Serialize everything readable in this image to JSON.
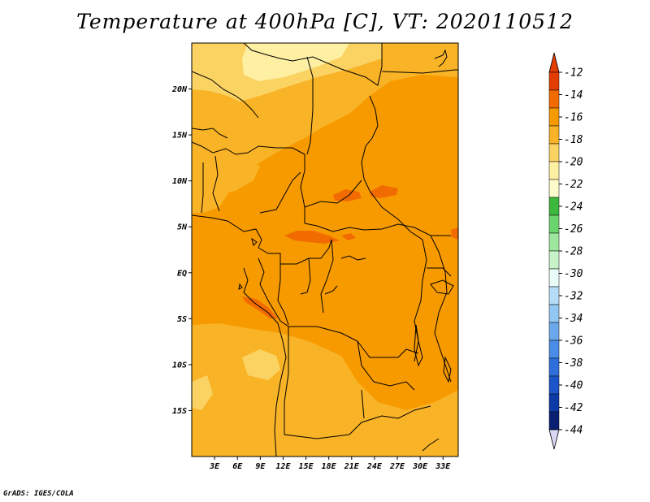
{
  "title": "Temperature at 400hPa [C], VT: 2020110512",
  "credit": "GrADS: IGES/COLA",
  "map": {
    "lon_range": [
      0,
      35
    ],
    "lat_range": [
      -20,
      25
    ],
    "lat_labels": [
      {
        "lat": 20,
        "text": "20N"
      },
      {
        "lat": 15,
        "text": "15N"
      },
      {
        "lat": 10,
        "text": "10N"
      },
      {
        "lat": 5,
        "text": "5N"
      },
      {
        "lat": 0,
        "text": "EQ"
      },
      {
        "lat": -5,
        "text": "5S"
      },
      {
        "lat": -10,
        "text": "10S"
      },
      {
        "lat": -15,
        "text": "15S"
      }
    ],
    "lon_labels": [
      {
        "lon": 3,
        "text": "3E"
      },
      {
        "lon": 6,
        "text": "6E"
      },
      {
        "lon": 9,
        "text": "9E"
      },
      {
        "lon": 12,
        "text": "12E"
      },
      {
        "lon": 15,
        "text": "15E"
      },
      {
        "lon": 18,
        "text": "18E"
      },
      {
        "lon": 21,
        "text": "21E"
      },
      {
        "lon": 24,
        "text": "24E"
      },
      {
        "lon": 27,
        "text": "27E"
      },
      {
        "lon": 30,
        "text": "30E"
      },
      {
        "lon": 33,
        "text": "33E"
      }
    ]
  },
  "colorbar": {
    "labels": [
      "-12",
      "-14",
      "-16",
      "-18",
      "-20",
      "-22",
      "-24",
      "-26",
      "-28",
      "-30",
      "-32",
      "-34",
      "-36",
      "-38",
      "-40",
      "-42",
      "-44"
    ],
    "colors": [
      "#e33d00",
      "#f26b00",
      "#f79a00",
      "#f9b326",
      "#fbd363",
      "#fdf0a3",
      "#fffccc",
      "#3cb93c",
      "#6cd46c",
      "#9ee59e",
      "#c8f2c8",
      "#e9fbf7",
      "#b6dcf7",
      "#92c6f3",
      "#6ba8ec",
      "#4a8de6",
      "#2f6fdc",
      "#1c55c9",
      "#0d3aa6",
      "#0a1f72"
    ],
    "top_triangle_color": "#e33d00",
    "bottom_triangle_color": "#d8d8f4"
  }
}
